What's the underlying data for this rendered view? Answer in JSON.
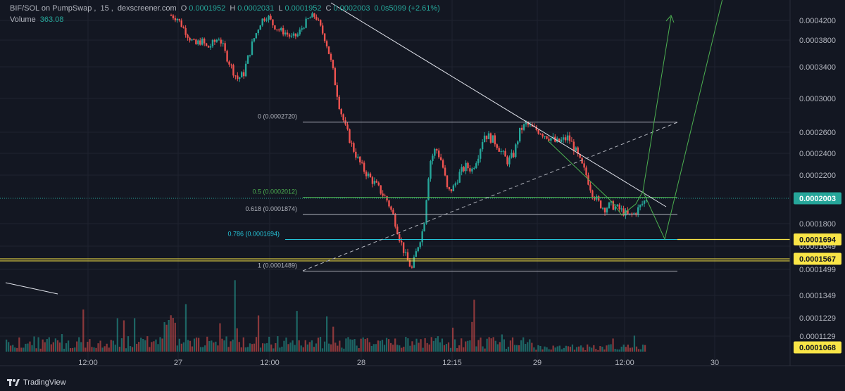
{
  "legend": {
    "pair": "BIF/SOL on PumpSwap",
    "interval": "15",
    "source": "dexscreener.com",
    "o_label": "O",
    "o_value": "0.0001952",
    "h_label": "H",
    "h_value": "0.0002031",
    "l_label": "L",
    "l_value": "0.0001952",
    "c_label": "C",
    "c_value": "0.0002003",
    "change": "0.0s5099 (+2.61%)",
    "volume_label": "Volume",
    "volume_value": "363.08"
  },
  "footer": {
    "brand": "TradingView"
  },
  "colors": {
    "background": "#131722",
    "up": "#26a69a",
    "down": "#ef5350",
    "fib_line": "#b2b5be",
    "fib_05": "#4caf50",
    "fib_0786": "#26c6da",
    "yellow": "#f9e547",
    "trend": "#e0e3eb",
    "projection": "#4caf50"
  },
  "chart_data": {
    "type": "candlestick",
    "y_axis_ticks": [
      "0.0004200",
      "0.0003800",
      "0.0003400",
      "0.0003000",
      "0.0002600",
      "0.0002400",
      "0.0002200",
      "0.0001800",
      "0.0001649",
      "0.0001499",
      "0.0001349",
      "0.0001229",
      "0.0001129"
    ],
    "x_axis_ticks": [
      "12:00",
      "27",
      "12:00",
      "28",
      "12:15",
      "29",
      "12:00",
      "30"
    ],
    "price_labels": [
      {
        "value": "0.0002003",
        "style": "green"
      },
      {
        "value": "0.0001694",
        "style": "yellow"
      },
      {
        "value": "0.0001567",
        "style": "yellow"
      },
      {
        "value": "0.0001068",
        "style": "yellow"
      }
    ],
    "fib_levels": [
      {
        "label": "0 (0.0002720)",
        "value": 0.000272,
        "color": "#b2b5be"
      },
      {
        "label": "0.5 (0.0002012)",
        "value": 0.0002012,
        "color": "#4caf50"
      },
      {
        "label": "0.618 (0.0001874)",
        "value": 0.0001874,
        "color": "#b2b5be"
      },
      {
        "label": "0.786 (0.0001694)",
        "value": 0.0001694,
        "color": "#26c6da"
      },
      {
        "label": "1 (0.0001489)",
        "value": 0.0001489,
        "color": "#b2b5be"
      }
    ],
    "horizontal_lines": [
      0.0001694,
      0.0001567,
      0.0002003
    ],
    "close_path": [
      0.00043,
      0.000425,
      0.000405,
      0.000385,
      0.000372,
      0.00038,
      0.000368,
      0.000375,
      0.000385,
      0.00036,
      0.00034,
      0.000325,
      0.00033,
      0.00036,
      0.00039,
      0.00042,
      0.00043,
      0.00041,
      0.0004,
      0.000395,
      0.000385,
      0.00039,
      0.00041,
      0.000425,
      0.00043,
      0.0004,
      0.00037,
      0.00033,
      0.00029,
      0.000265,
      0.000248,
      0.000235,
      0.000225,
      0.000218,
      0.000212,
      0.000205,
      0.000198,
      0.000185,
      0.00017,
      0.000158,
      0.00015,
      0.000165,
      0.000178,
      0.000232,
      0.000245,
      0.000232,
      0.000205,
      0.00021,
      0.000222,
      0.000228,
      0.000225,
      0.000238,
      0.000258,
      0.000255,
      0.00025,
      0.00024,
      0.000232,
      0.00024,
      0.000262,
      0.00027,
      0.000265,
      0.000262,
      0.000258,
      0.000255,
      0.00025,
      0.000252,
      0.000255,
      0.000245,
      0.000232,
      0.00022,
      0.000205,
      0.000197,
      0.000192,
      0.000195,
      0.000193,
      0.00019,
      0.000186,
      0.000188,
      0.000194,
      0.0002
    ]
  }
}
